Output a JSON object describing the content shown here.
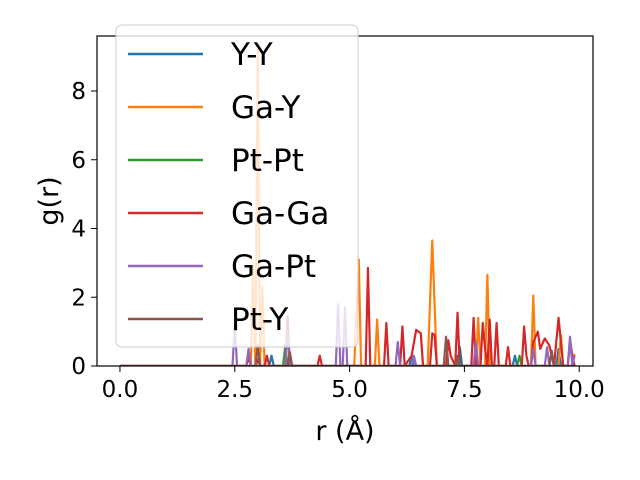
{
  "chart_data": {
    "type": "line",
    "title": "",
    "xlabel": "r (Å)",
    "ylabel": "g(r)",
    "xlim": [
      -0.5,
      10.3
    ],
    "ylim": [
      0,
      9.6
    ],
    "xticks": [
      0.0,
      2.5,
      5.0,
      7.5,
      10.0
    ],
    "xtick_labels": [
      "0.0",
      "2.5",
      "5.0",
      "7.5",
      "10.0"
    ],
    "yticks": [
      0,
      2,
      4,
      6,
      8
    ],
    "ytick_labels": [
      "0",
      "2",
      "4",
      "6",
      "8"
    ],
    "grid": false,
    "legend_position": "upper-left",
    "series": [
      {
        "name": "Y-Y",
        "color": "#1f77b4",
        "points": [
          [
            0,
            0
          ],
          [
            3.25,
            0
          ],
          [
            3.3,
            0.3
          ],
          [
            3.35,
            0
          ],
          [
            6.3,
            0
          ],
          [
            6.35,
            0.3
          ],
          [
            6.4,
            0
          ],
          [
            7.35,
            0
          ],
          [
            7.4,
            0.55
          ],
          [
            7.45,
            0
          ],
          [
            8.55,
            0
          ],
          [
            8.6,
            0.3
          ],
          [
            8.65,
            0
          ],
          [
            9.5,
            0
          ],
          [
            9.55,
            0.5
          ],
          [
            9.6,
            0
          ],
          [
            9.9,
            0
          ]
        ]
      },
      {
        "name": "Ga-Y",
        "color": "#ff7f0e",
        "points": [
          [
            0,
            0
          ],
          [
            2.85,
            0
          ],
          [
            2.9,
            3.0
          ],
          [
            2.95,
            0
          ],
          [
            3.0,
            9.2
          ],
          [
            3.05,
            0
          ],
          [
            3.1,
            2.3
          ],
          [
            3.15,
            0
          ],
          [
            5.1,
            0
          ],
          [
            5.2,
            3.1
          ],
          [
            5.25,
            0
          ],
          [
            5.55,
            0
          ],
          [
            5.6,
            1.35
          ],
          [
            5.65,
            0
          ],
          [
            6.7,
            0
          ],
          [
            6.8,
            3.65
          ],
          [
            6.9,
            0
          ],
          [
            7.75,
            0
          ],
          [
            7.8,
            1.4
          ],
          [
            7.85,
            0
          ],
          [
            7.95,
            0
          ],
          [
            8.0,
            2.65
          ],
          [
            8.05,
            0
          ],
          [
            8.95,
            0
          ],
          [
            9.0,
            2.05
          ],
          [
            9.05,
            0
          ],
          [
            9.55,
            0
          ],
          [
            9.6,
            0.9
          ],
          [
            9.65,
            0
          ],
          [
            9.85,
            0
          ],
          [
            9.9,
            0.35
          ]
        ]
      },
      {
        "name": "Pt-Pt",
        "color": "#2ca02c",
        "points": [
          [
            0,
            0
          ],
          [
            3.55,
            0
          ],
          [
            3.6,
            0.6
          ],
          [
            3.65,
            0
          ],
          [
            7.3,
            0
          ],
          [
            7.35,
            0.2
          ],
          [
            7.4,
            0
          ],
          [
            8.65,
            0
          ],
          [
            8.7,
            0.3
          ],
          [
            8.75,
            0
          ],
          [
            9.9,
            0
          ]
        ]
      },
      {
        "name": "Ga-Ga",
        "color": "#d62728",
        "points": [
          [
            0,
            0
          ],
          [
            2.75,
            0
          ],
          [
            2.8,
            0.25
          ],
          [
            2.85,
            0
          ],
          [
            2.95,
            0
          ],
          [
            3.0,
            0.2
          ],
          [
            3.05,
            0
          ],
          [
            3.15,
            0
          ],
          [
            3.2,
            0.3
          ],
          [
            3.25,
            0
          ],
          [
            3.6,
            0
          ],
          [
            3.65,
            1.45
          ],
          [
            3.7,
            0
          ],
          [
            4.3,
            0
          ],
          [
            4.35,
            0.3
          ],
          [
            4.4,
            0
          ],
          [
            5.35,
            0
          ],
          [
            5.4,
            2.85
          ],
          [
            5.45,
            0
          ],
          [
            5.75,
            0
          ],
          [
            5.8,
            1.25
          ],
          [
            5.85,
            0
          ],
          [
            6.1,
            0
          ],
          [
            6.15,
            1.15
          ],
          [
            6.2,
            0
          ],
          [
            6.35,
            0.3
          ],
          [
            6.45,
            1.05
          ],
          [
            6.55,
            0.95
          ],
          [
            6.6,
            0
          ],
          [
            6.75,
            0
          ],
          [
            6.8,
            0.95
          ],
          [
            6.85,
            0.9
          ],
          [
            6.9,
            0
          ],
          [
            7.1,
            0
          ],
          [
            7.15,
            0.75
          ],
          [
            7.2,
            0.3
          ],
          [
            7.3,
            0
          ],
          [
            7.35,
            1.55
          ],
          [
            7.4,
            0
          ],
          [
            7.65,
            0
          ],
          [
            7.7,
            1.4
          ],
          [
            7.75,
            0
          ],
          [
            7.85,
            0
          ],
          [
            7.9,
            1.25
          ],
          [
            7.95,
            0.5
          ],
          [
            8.0,
            0
          ],
          [
            8.05,
            1.35
          ],
          [
            8.1,
            0
          ],
          [
            8.15,
            0
          ],
          [
            8.2,
            1.25
          ],
          [
            8.25,
            0
          ],
          [
            8.4,
            0
          ],
          [
            8.45,
            0.55
          ],
          [
            8.5,
            0
          ],
          [
            8.75,
            0
          ],
          [
            8.8,
            1.15
          ],
          [
            8.85,
            0.3
          ],
          [
            8.9,
            0
          ],
          [
            8.95,
            0
          ],
          [
            9.0,
            0.7
          ],
          [
            9.1,
            1.0
          ],
          [
            9.15,
            0.5
          ],
          [
            9.25,
            0.8
          ],
          [
            9.35,
            0.6
          ],
          [
            9.45,
            0
          ],
          [
            9.55,
            1.4
          ],
          [
            9.65,
            0
          ],
          [
            9.75,
            0
          ],
          [
            9.8,
            0.75
          ],
          [
            9.85,
            0.3
          ],
          [
            9.9,
            0
          ]
        ]
      },
      {
        "name": "Ga-Pt",
        "color": "#9467bd",
        "points": [
          [
            0,
            0
          ],
          [
            2.45,
            0
          ],
          [
            2.5,
            1.2
          ],
          [
            2.55,
            0
          ],
          [
            2.75,
            0
          ],
          [
            2.8,
            0.5
          ],
          [
            2.85,
            0
          ],
          [
            3.6,
            0
          ],
          [
            3.65,
            1.05
          ],
          [
            3.7,
            0
          ],
          [
            4.7,
            0
          ],
          [
            4.75,
            1.8
          ],
          [
            4.8,
            0
          ],
          [
            4.85,
            0
          ],
          [
            4.9,
            1.7
          ],
          [
            4.95,
            0
          ],
          [
            6.0,
            0
          ],
          [
            6.05,
            0.7
          ],
          [
            6.1,
            0
          ],
          [
            6.35,
            0
          ],
          [
            6.4,
            0.3
          ],
          [
            6.45,
            0
          ],
          [
            7.7,
            0
          ],
          [
            7.75,
            0.7
          ],
          [
            7.8,
            0
          ],
          [
            8.95,
            0
          ],
          [
            9.0,
            0.5
          ],
          [
            9.05,
            0
          ],
          [
            9.25,
            0
          ],
          [
            9.3,
            0.55
          ],
          [
            9.35,
            0
          ],
          [
            9.75,
            0
          ],
          [
            9.8,
            0.85
          ],
          [
            9.85,
            0
          ],
          [
            9.9,
            0.3
          ]
        ]
      },
      {
        "name": "Pt-Y",
        "color": "#8c564b",
        "points": [
          [
            0,
            0
          ],
          [
            2.95,
            0
          ],
          [
            3.0,
            0.6
          ],
          [
            3.05,
            0
          ],
          [
            3.65,
            0
          ],
          [
            3.7,
            0.4
          ],
          [
            3.75,
            0
          ],
          [
            7.05,
            0
          ],
          [
            7.1,
            0.85
          ],
          [
            7.15,
            0
          ],
          [
            7.3,
            0
          ],
          [
            7.35,
            0.3
          ],
          [
            7.4,
            0
          ],
          [
            9.35,
            0
          ],
          [
            9.4,
            0.45
          ],
          [
            9.45,
            0
          ],
          [
            9.9,
            0
          ]
        ]
      }
    ]
  }
}
